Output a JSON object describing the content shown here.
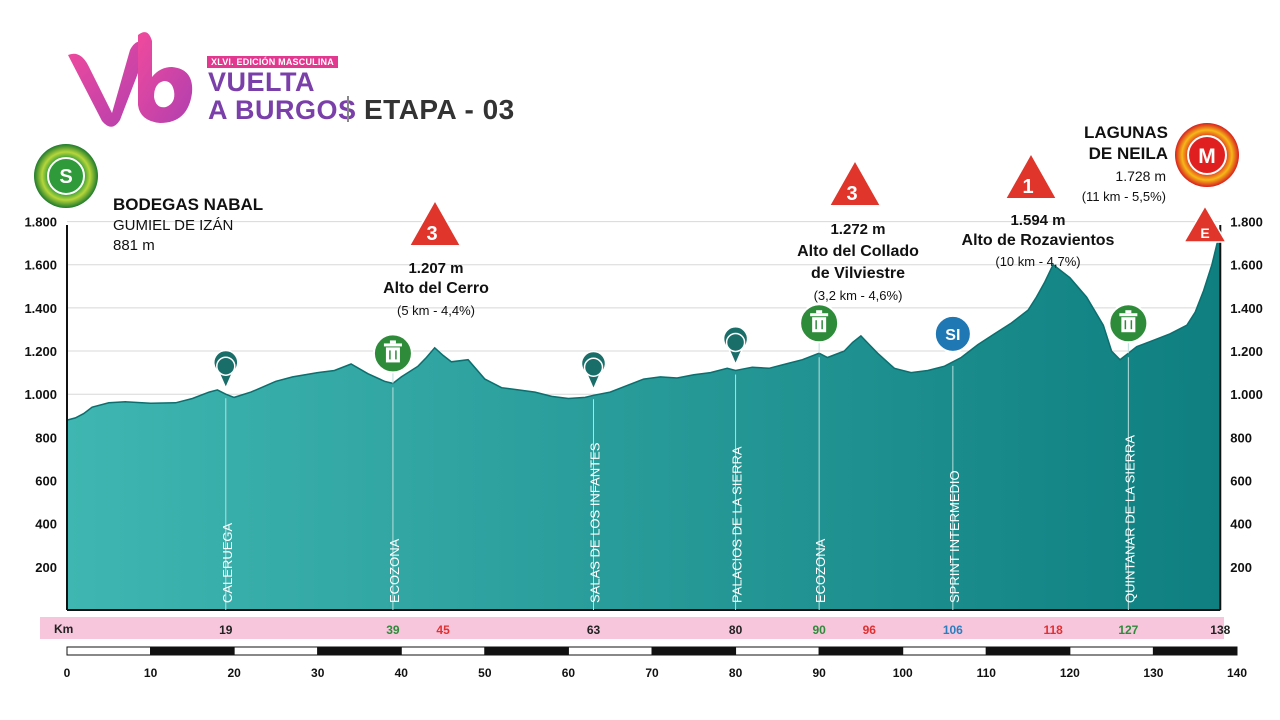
{
  "header": {
    "edition": "XLVI. EDICIÓN MASCULINA",
    "brand_line1": "VUELTA",
    "brand_line2": "A BURGOS",
    "stage": "ETAPA - 03"
  },
  "start": {
    "badge": "S",
    "name": "BODEGAS NABAL",
    "town": "GUMIEL DE IZÁN",
    "altitude": "881 m"
  },
  "finish": {
    "badge": "M",
    "finish_marker": "E",
    "name_line1": "LAGUNAS",
    "name_line2": "DE NEILA",
    "altitude": "1.728 m",
    "climb": "(11 km - 5,5%)"
  },
  "climbs": [
    {
      "category": "3",
      "altitude": "1.207 m",
      "name_lines": [
        "Alto del Cerro"
      ],
      "detail": "(5 km - 4,4%)"
    },
    {
      "category": "3",
      "altitude": "1.272 m",
      "name_lines": [
        "Alto del Collado",
        "de Vilviestre"
      ],
      "detail": "(3,2 km - 4,6%)"
    },
    {
      "category": "1",
      "altitude": "1.594 m",
      "name_lines": [
        "Alto de Rozavientos"
      ],
      "detail": "(10 km - 4,7%)"
    }
  ],
  "waypoints": [
    {
      "name": "CALERUEGA",
      "km": "19",
      "type": "town"
    },
    {
      "name": "ECOZONA",
      "km": "39",
      "type": "ecozona"
    },
    {
      "name": "SALAS DE LOS INFANTES",
      "km": "63",
      "type": "town"
    },
    {
      "name": "PALACIOS DE LA SIERRA",
      "km": "80",
      "type": "town"
    },
    {
      "name": "ECOZONA",
      "km": "90",
      "type": "ecozona"
    },
    {
      "name": "SPRINT INTERMEDIO",
      "km": "106",
      "type": "sprint",
      "badge": "SI"
    },
    {
      "name": "QUINTANAR DE LA SIERRA",
      "km": "127",
      "type": "ecozona"
    }
  ],
  "km_bar": {
    "label": "Km",
    "marks": [
      {
        "km": "19",
        "color": "#222222"
      },
      {
        "km": "39",
        "color": "#2e8b3a"
      },
      {
        "km": "45",
        "color": "#e03030"
      },
      {
        "km": "63",
        "color": "#222222"
      },
      {
        "km": "80",
        "color": "#222222"
      },
      {
        "km": "90",
        "color": "#2e8b3a"
      },
      {
        "km": "96",
        "color": "#e03030"
      },
      {
        "km": "106",
        "color": "#2a7fc0"
      },
      {
        "km": "118",
        "color": "#e03030"
      },
      {
        "km": "127",
        "color": "#2e8b3a"
      },
      {
        "km": "138",
        "color": "#222222"
      }
    ]
  },
  "colors": {
    "profile_top": "#3fb6b1",
    "profile_bottom": "#0f7f80",
    "kmbar_bg": "#f7c6dc",
    "climb_red": "#e0352b",
    "ecozona_green": "#2e8b3a",
    "sprint_blue": "#1f78b4",
    "brand_pink": "#e2388f",
    "brand_purple": "#7a3fa8"
  },
  "chart_data": {
    "type": "area",
    "title": "",
    "xlabel": "",
    "ylabel": "",
    "xlim": [
      0,
      140
    ],
    "ylim": [
      0,
      1900
    ],
    "y_ticks": [
      200,
      400,
      600,
      800,
      1000,
      1200,
      1400,
      1600,
      1800
    ],
    "y_tick_labels": [
      "200",
      "400",
      "600",
      "800",
      "1.000",
      "1.200",
      "1.400",
      "1.600",
      "1.800"
    ],
    "x_ticks": [
      0,
      10,
      20,
      30,
      40,
      50,
      60,
      70,
      80,
      90,
      100,
      110,
      120,
      130,
      140
    ],
    "x_tick_labels": [
      "0",
      "10",
      "20",
      "30",
      "40",
      "50",
      "60",
      "70",
      "80",
      "90",
      "100",
      "110",
      "120",
      "130",
      "140"
    ],
    "series": [
      {
        "x": [
          0,
          1,
          2,
          3,
          5,
          7,
          10,
          13,
          15,
          17,
          18,
          19,
          20,
          22,
          25,
          27,
          30,
          32,
          34,
          36,
          38,
          39,
          40,
          42,
          43,
          44,
          45,
          46,
          48,
          50,
          52,
          54,
          56,
          58,
          60,
          62,
          63,
          65,
          67,
          69,
          71,
          73,
          75,
          77,
          79,
          80,
          82,
          84,
          86,
          88,
          90,
          91,
          93,
          94,
          95,
          96,
          97,
          99,
          101,
          103,
          105,
          107,
          109,
          111,
          113,
          115,
          116,
          117,
          118,
          120,
          122,
          124,
          125,
          126,
          127,
          128,
          130,
          132,
          134,
          135,
          136,
          137,
          138
        ],
        "y": [
          880,
          890,
          910,
          940,
          960,
          965,
          958,
          960,
          980,
          1010,
          1020,
          1000,
          985,
          1010,
          1060,
          1080,
          1100,
          1110,
          1140,
          1095,
          1060,
          1050,
          1080,
          1130,
          1170,
          1215,
          1180,
          1150,
          1160,
          1070,
          1030,
          1020,
          1010,
          990,
          980,
          985,
          995,
          1010,
          1040,
          1070,
          1080,
          1075,
          1090,
          1100,
          1120,
          1110,
          1125,
          1120,
          1140,
          1160,
          1190,
          1170,
          1200,
          1240,
          1270,
          1230,
          1190,
          1120,
          1100,
          1110,
          1130,
          1170,
          1230,
          1280,
          1330,
          1390,
          1450,
          1520,
          1600,
          1540,
          1450,
          1320,
          1200,
          1160,
          1190,
          1220,
          1250,
          1280,
          1320,
          1380,
          1480,
          1600,
          1760
        ]
      }
    ]
  }
}
